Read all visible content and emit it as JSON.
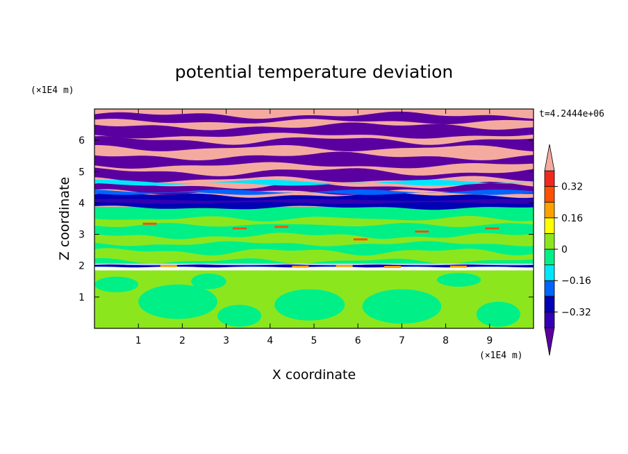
{
  "chart_data": {
    "type": "heatmap",
    "title": "potential temperature deviation",
    "xlabel": "X coordinate",
    "ylabel": "Z coordinate",
    "x_unit": "(×1E4 m)",
    "y_unit": "(×1E4 m)",
    "time_label": "t=4.2444e+06",
    "xlim": [
      0,
      10
    ],
    "ylim": [
      0,
      7
    ],
    "x_ticks": [
      1,
      2,
      3,
      4,
      5,
      6,
      7,
      8,
      9
    ],
    "y_ticks": [
      1,
      2,
      3,
      4,
      5,
      6
    ],
    "colorbar": {
      "levels": [
        -0.4,
        -0.32,
        -0.24,
        -0.16,
        -0.08,
        0,
        0.08,
        0.16,
        0.24,
        0.32,
        0.4
      ],
      "tick_values": [
        0.32,
        0.16,
        0,
        -0.16,
        -0.32
      ],
      "tick_labels": [
        "0.32",
        "0.16",
        "0",
        "−0.16",
        "−0.32"
      ],
      "colors": [
        "#5a00a0",
        "#3200b4",
        "#0000b4",
        "#0064ff",
        "#00e6ff",
        "#00f087",
        "#8ce61e",
        "#ffff00",
        "#ffa000",
        "#ff5000",
        "#f0281e",
        "#f5aaa0"
      ]
    },
    "layers": [
      {
        "z_range": [
          0,
          1.85
        ],
        "dominant": "0 to 0.08",
        "secondary": "-0.08 to 0"
      },
      {
        "z_range": [
          1.85,
          2.05
        ],
        "dominant": "-0.32 to -0.24",
        "secondary": "0.24 to 0.32"
      },
      {
        "z_range": [
          2.05,
          3.85
        ],
        "dominant": "-0.08 to 0",
        "secondary": "0 to 0.08"
      },
      {
        "z_range": [
          3.85,
          4.3
        ],
        "dominant": "-0.32 to -0.24",
        "secondary": "-0.16 to -0.08"
      },
      {
        "z_range": [
          4.3,
          7
        ],
        "dominant": "alternating bands above 0.4 and below -0.4"
      }
    ]
  }
}
